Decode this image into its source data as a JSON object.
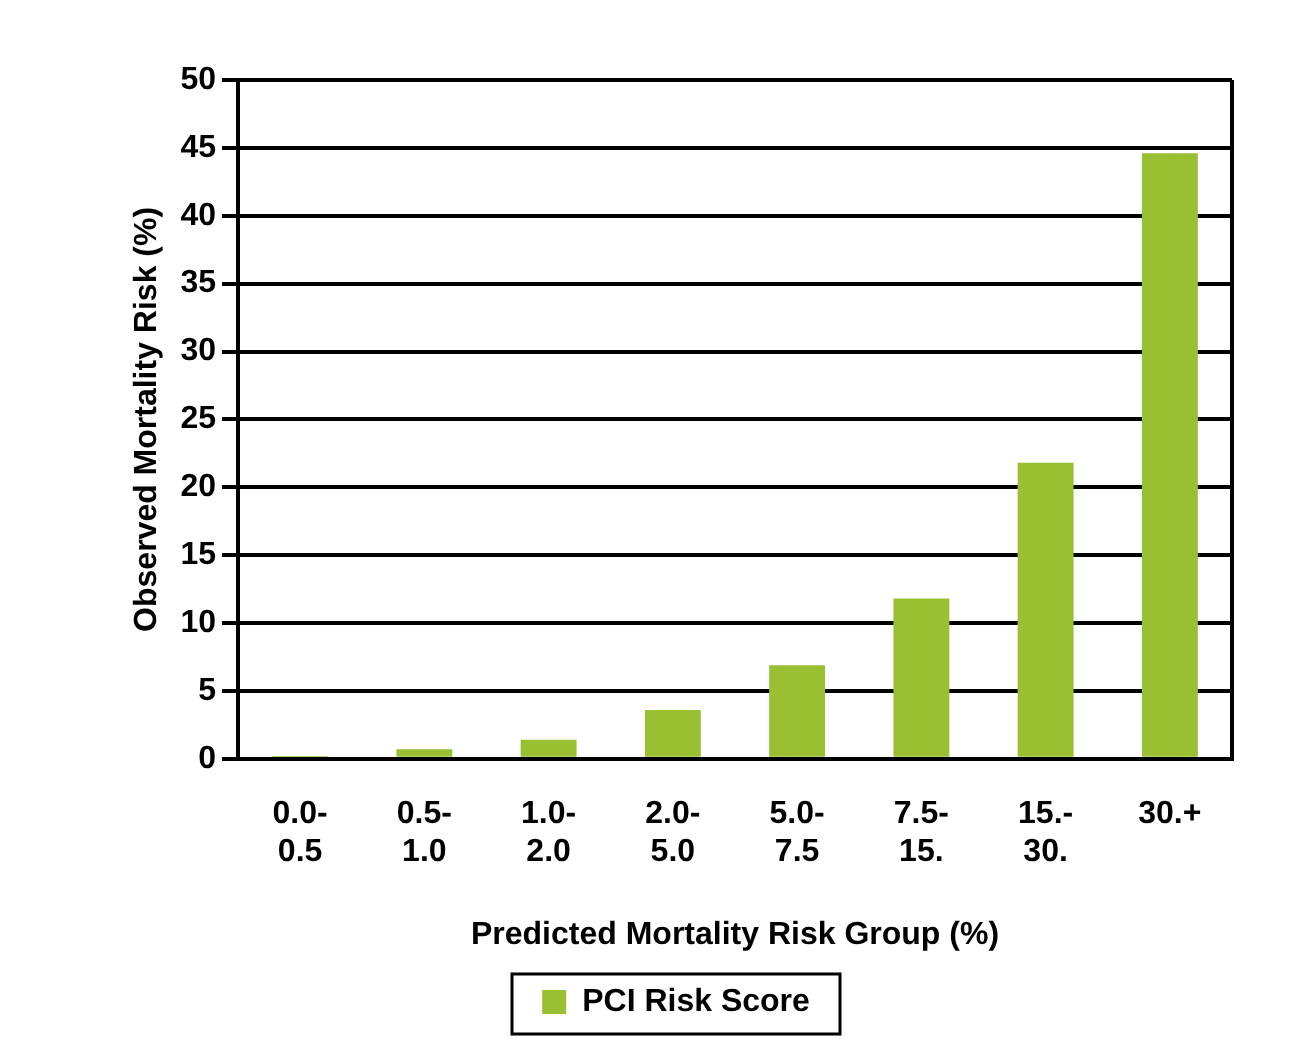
{
  "chart_data": {
    "type": "bar",
    "xlabel": "Predicted Mortality Risk Group (%)",
    "ylabel": "Observed Mortality Risk (%)",
    "categories": [
      "0.0-0.5",
      "0.5-1.0",
      "1.0-2.0",
      "2.0-5.0",
      "5.0-7.5",
      "7.5-15.",
      "15.-30.",
      "30.+"
    ],
    "series": [
      {
        "name": "PCI Risk Score",
        "color": "#99c033",
        "values": [
          0.2,
          0.7,
          1.4,
          3.6,
          6.9,
          11.8,
          21.8,
          44.6
        ]
      }
    ],
    "ylim": [
      0,
      50
    ],
    "yticks": [
      0,
      5,
      10,
      15,
      20,
      25,
      30,
      35,
      40,
      45,
      50
    ],
    "grid": "y",
    "legend": "bottom"
  }
}
